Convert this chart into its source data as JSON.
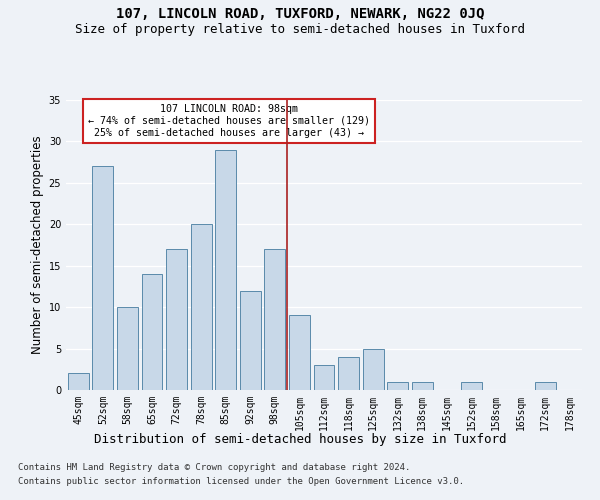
{
  "title": "107, LINCOLN ROAD, TUXFORD, NEWARK, NG22 0JQ",
  "subtitle": "Size of property relative to semi-detached houses in Tuxford",
  "xlabel_bottom": "Distribution of semi-detached houses by size in Tuxford",
  "ylabel": "Number of semi-detached properties",
  "categories": [
    "45sqm",
    "52sqm",
    "58sqm",
    "65sqm",
    "72sqm",
    "78sqm",
    "85sqm",
    "92sqm",
    "98sqm",
    "105sqm",
    "112sqm",
    "118sqm",
    "125sqm",
    "132sqm",
    "138sqm",
    "145sqm",
    "152sqm",
    "158sqm",
    "165sqm",
    "172sqm",
    "178sqm"
  ],
  "values": [
    2,
    27,
    10,
    14,
    17,
    20,
    29,
    12,
    17,
    9,
    3,
    4,
    5,
    1,
    1,
    0,
    1,
    0,
    0,
    1,
    0
  ],
  "bar_color": "#c8d8e8",
  "bar_edge_color": "#5a8aaa",
  "marker_index": 8,
  "annotation_title": "107 LINCOLN ROAD: 98sqm",
  "annotation_line1": "← 74% of semi-detached houses are smaller (129)",
  "annotation_line2": "25% of semi-detached houses are larger (43) →",
  "vline_color": "#aa2222",
  "annotation_box_edge": "#cc2222",
  "footnote1": "Contains HM Land Registry data © Crown copyright and database right 2024.",
  "footnote2": "Contains public sector information licensed under the Open Government Licence v3.0.",
  "ylim": [
    0,
    35
  ],
  "yticks": [
    0,
    5,
    10,
    15,
    20,
    25,
    30,
    35
  ],
  "background_color": "#eef2f7",
  "grid_color": "#ffffff",
  "title_fontsize": 10,
  "subtitle_fontsize": 9,
  "tick_fontsize": 7,
  "ylabel_fontsize": 8.5,
  "xlabel_bottom_fontsize": 9,
  "footnote_fontsize": 6.5
}
